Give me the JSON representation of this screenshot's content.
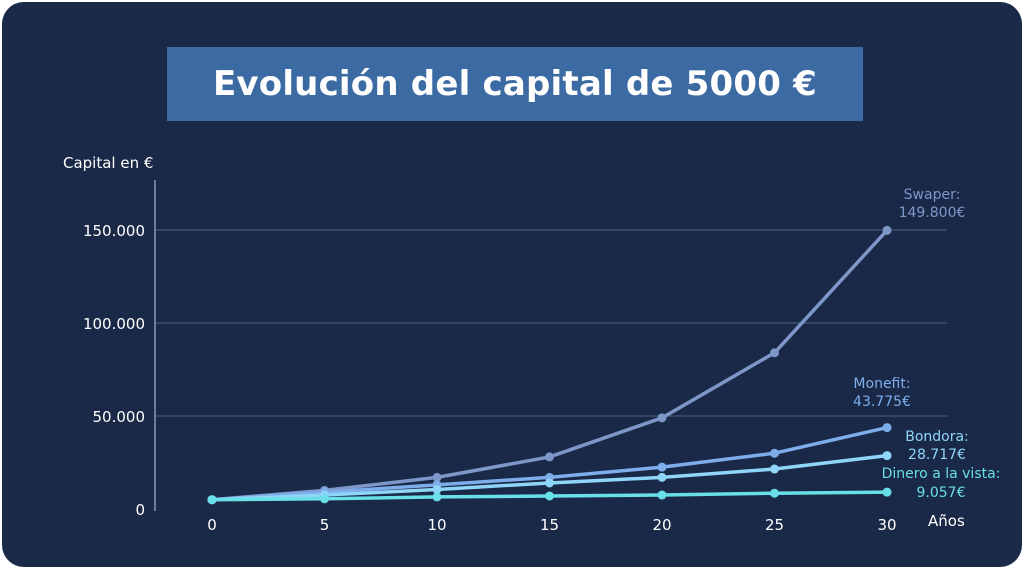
{
  "title": "Evolución del capital de 5000 €",
  "chart_data": {
    "type": "line",
    "title": "Evolución del capital de 5000 €",
    "xlabel": "Años",
    "ylabel": "Capital en €",
    "x": [
      0,
      5,
      10,
      15,
      20,
      25,
      30
    ],
    "x_tick_labels": [
      "0",
      "5",
      "10",
      "15",
      "20",
      "25",
      "30"
    ],
    "y_ticks": [
      0,
      50000,
      100000,
      150000
    ],
    "y_tick_labels": [
      "0",
      "50.000",
      "100.000",
      "150.000"
    ],
    "ylim": [
      0,
      175000
    ],
    "xlim": [
      -2.5,
      32.5
    ],
    "grid": true,
    "series": [
      {
        "name": "Swaper",
        "end_label": [
          "Swaper:",
          "149.800€"
        ],
        "color": "#7d97c9",
        "values": [
          5000,
          10000,
          17000,
          28000,
          49000,
          84000,
          149800
        ]
      },
      {
        "name": "Monefit",
        "end_label": [
          "Monefit:",
          "43.775€"
        ],
        "color": "#7dadea",
        "values": [
          5000,
          9000,
          13000,
          17000,
          22500,
          30000,
          43775
        ]
      },
      {
        "name": "Bondora",
        "end_label": [
          "Bondora:",
          "28.717€"
        ],
        "color": "#8fd5f7",
        "values": [
          5000,
          7500,
          10500,
          14000,
          17000,
          21500,
          28717
        ]
      },
      {
        "name": "Dinero a la vista",
        "end_label": [
          "Dinero a la vista:",
          "9.057€"
        ],
        "color": "#69dfe8",
        "values": [
          5000,
          5500,
          6500,
          7000,
          7500,
          8500,
          9057
        ]
      }
    ]
  }
}
